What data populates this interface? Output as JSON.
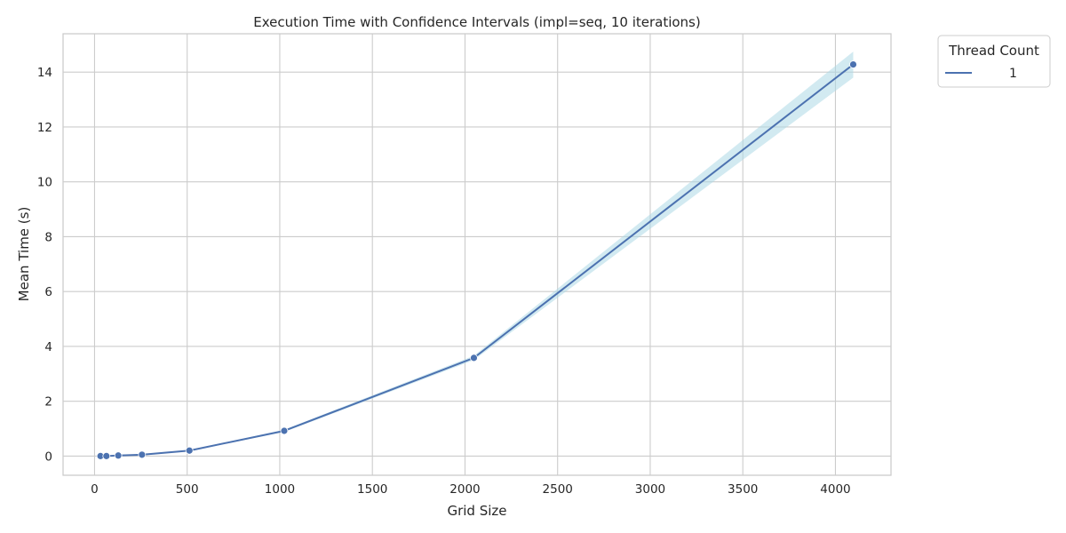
{
  "chart_data": {
    "type": "line",
    "title": "Execution Time with Confidence Intervals (impl=seq, 10 iterations)",
    "xlabel": "Grid Size",
    "ylabel": "Mean Time (s)",
    "xlim": [
      -170,
      4300
    ],
    "ylim": [
      -0.7,
      15.4
    ],
    "xticks": [
      0,
      500,
      1000,
      1500,
      2000,
      2500,
      3000,
      3500,
      4000
    ],
    "yticks": [
      0,
      2,
      4,
      6,
      8,
      10,
      12,
      14
    ],
    "xtick_labels": [
      "0",
      "500",
      "1000",
      "1500",
      "2000",
      "2500",
      "3000",
      "3500",
      "4000"
    ],
    "ytick_labels": [
      "0",
      "2",
      "4",
      "6",
      "8",
      "10",
      "12",
      "14"
    ],
    "grid": true,
    "legend": {
      "title": "Thread Count",
      "placement": "outside-top-right",
      "entries": [
        "1"
      ]
    },
    "series": [
      {
        "name": "1",
        "color": "#4c72b0",
        "ci_color": "#add8e6",
        "x": [
          32,
          64,
          128,
          256,
          512,
          1024,
          2048,
          4096
        ],
        "y": [
          0.0,
          0.0,
          0.02,
          0.05,
          0.2,
          0.92,
          3.58,
          14.28
        ],
        "ci_low": [
          0.0,
          0.0,
          0.01,
          0.04,
          0.18,
          0.88,
          3.5,
          13.8
        ],
        "ci_high": [
          0.0,
          0.01,
          0.03,
          0.06,
          0.22,
          0.96,
          3.66,
          14.75
        ]
      }
    ]
  }
}
